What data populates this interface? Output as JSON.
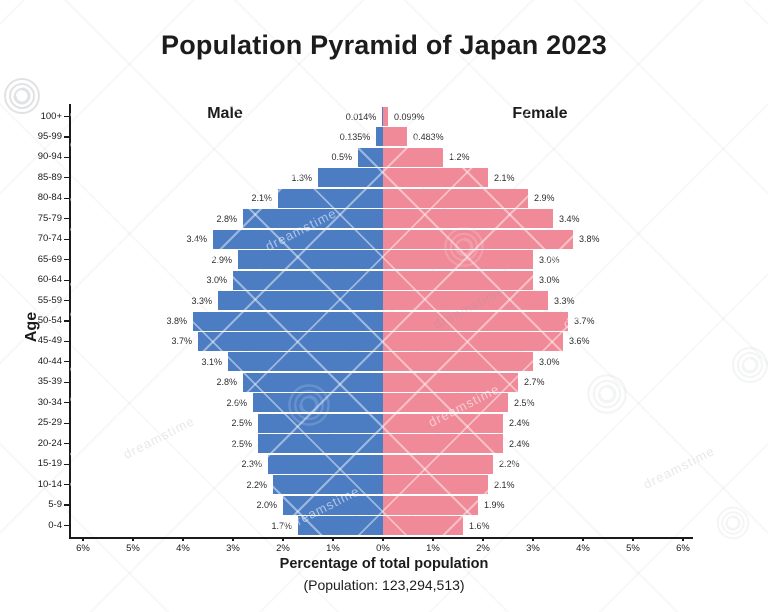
{
  "title": "Population Pyramid of Japan 2023",
  "labels": {
    "male": "Male",
    "female": "Female",
    "age_axis": "Age"
  },
  "footer": {
    "xlabel": "Percentage of total population",
    "population_note": "(Population: 123,294,513)"
  },
  "watermark": {
    "text": "dreamstime"
  },
  "colors": {
    "male": "#4C7DC3",
    "female": "#F08A98",
    "axis": "#1a1a1a",
    "value_label": "#2b2b2b"
  },
  "chart_data": {
    "type": "bar",
    "variant": "population-pyramid",
    "title": "Population Pyramid of Japan 2023",
    "xlabel": "Percentage of total population",
    "ylabel": "Age",
    "population_total": "123,294,513",
    "categories": [
      "100+",
      "95-99",
      "90-94",
      "85-89",
      "80-84",
      "75-79",
      "70-74",
      "65-69",
      "60-64",
      "55-59",
      "50-54",
      "45-49",
      "40-44",
      "35-39",
      "30-34",
      "25-29",
      "20-24",
      "15-19",
      "10-14",
      "5-9",
      "0-4"
    ],
    "series": [
      {
        "name": "Male",
        "side": "left",
        "color": "#4C7DC3",
        "values": [
          0.014,
          0.135,
          0.5,
          1.3,
          2.1,
          2.8,
          3.4,
          2.9,
          3.0,
          3.3,
          3.8,
          3.7,
          3.1,
          2.8,
          2.6,
          2.5,
          2.5,
          2.3,
          2.2,
          2.0,
          1.7
        ],
        "labels": [
          "0.014%",
          "0.135%",
          "0.5%",
          "1.3%",
          "2.1%",
          "2.8%",
          "3.4%",
          "2.9%",
          "3.0%",
          "3.3%",
          "3.8%",
          "3.7%",
          "3.1%",
          "2.8%",
          "2.6%",
          "2.5%",
          "2.5%",
          "2.3%",
          "2.2%",
          "2.0%",
          "1.7%"
        ]
      },
      {
        "name": "Female",
        "side": "right",
        "color": "#F08A98",
        "values": [
          0.099,
          0.483,
          1.2,
          2.1,
          2.9,
          3.4,
          3.8,
          3.0,
          3.0,
          3.3,
          3.7,
          3.6,
          3.0,
          2.7,
          2.5,
          2.4,
          2.4,
          2.2,
          2.1,
          1.9,
          1.6
        ],
        "labels": [
          "0.099%",
          "0.483%",
          "1.2%",
          "2.1%",
          "2.9%",
          "3.4%",
          "3.8%",
          "3.0%",
          "3.0%",
          "3.3%",
          "3.7%",
          "3.6%",
          "3.0%",
          "2.7%",
          "2.5%",
          "2.4%",
          "2.4%",
          "2.2%",
          "2.1%",
          "1.9%",
          "1.6%"
        ]
      }
    ],
    "x_ticks": [
      "6%",
      "5%",
      "4%",
      "3%",
      "2%",
      "1%",
      "0%",
      "1%",
      "2%",
      "3%",
      "4%",
      "5%",
      "6%"
    ],
    "x_max_percent_each_side": 6,
    "grid": false,
    "legend_position": "none"
  }
}
